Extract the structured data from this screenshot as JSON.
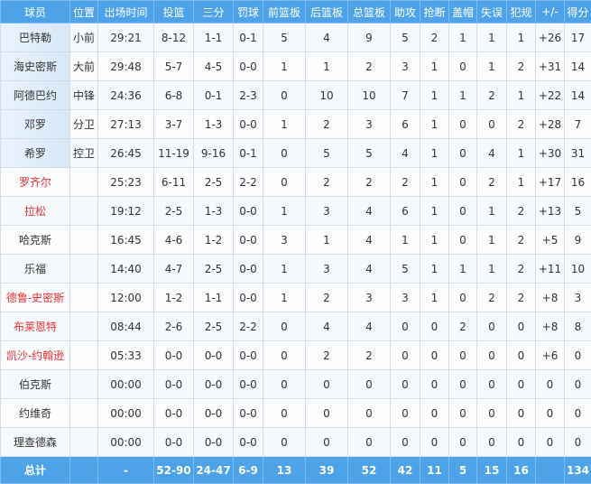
{
  "columns": [
    "球员",
    "位置",
    "出场时间",
    "投篮",
    "三分",
    "罚球",
    "前篮板",
    "后篮板",
    "总篮板",
    "助攻",
    "抢断",
    "盖帽",
    "失误",
    "犯规",
    "+/-",
    "得分"
  ],
  "players": [
    {
      "name": "巴特勒",
      "pos": "小前",
      "min": "29:21",
      "fg": "8-12",
      "tp": "1-1",
      "ft": "0-1",
      "oreb": "5",
      "dreb": "4",
      "reb": "9",
      "ast": "5",
      "stl": "2",
      "blk": "1",
      "tov": "1",
      "pf": "1",
      "pm": "+26",
      "pts": "17",
      "starter": true,
      "highlight": false
    },
    {
      "name": "海史密斯",
      "pos": "大前",
      "min": "29:48",
      "fg": "5-7",
      "tp": "4-5",
      "ft": "0-0",
      "oreb": "1",
      "dreb": "1",
      "reb": "2",
      "ast": "3",
      "stl": "1",
      "blk": "0",
      "tov": "1",
      "pf": "2",
      "pm": "+31",
      "pts": "14",
      "starter": true,
      "highlight": false
    },
    {
      "name": "阿德巴约",
      "pos": "中锋",
      "min": "24:36",
      "fg": "6-8",
      "tp": "0-1",
      "ft": "2-3",
      "oreb": "0",
      "dreb": "10",
      "reb": "10",
      "ast": "7",
      "stl": "1",
      "blk": "1",
      "tov": "2",
      "pf": "1",
      "pm": "+22",
      "pts": "14",
      "starter": true,
      "highlight": false
    },
    {
      "name": "邓罗",
      "pos": "分卫",
      "min": "27:13",
      "fg": "3-7",
      "tp": "1-3",
      "ft": "0-0",
      "oreb": "1",
      "dreb": "2",
      "reb": "3",
      "ast": "6",
      "stl": "1",
      "blk": "0",
      "tov": "0",
      "pf": "2",
      "pm": "+28",
      "pts": "7",
      "starter": true,
      "highlight": false
    },
    {
      "name": "希罗",
      "pos": "控卫",
      "min": "26:45",
      "fg": "11-19",
      "tp": "9-16",
      "ft": "0-1",
      "oreb": "0",
      "dreb": "5",
      "reb": "5",
      "ast": "4",
      "stl": "1",
      "blk": "0",
      "tov": "4",
      "pf": "1",
      "pm": "+30",
      "pts": "31",
      "starter": true,
      "highlight": false
    },
    {
      "name": "罗齐尔",
      "pos": "",
      "min": "25:23",
      "fg": "6-11",
      "tp": "2-5",
      "ft": "2-2",
      "oreb": "0",
      "dreb": "2",
      "reb": "2",
      "ast": "2",
      "stl": "1",
      "blk": "0",
      "tov": "2",
      "pf": "1",
      "pm": "+17",
      "pts": "16",
      "starter": false,
      "highlight": true
    },
    {
      "name": "拉松",
      "pos": "",
      "min": "19:12",
      "fg": "2-5",
      "tp": "1-3",
      "ft": "0-0",
      "oreb": "1",
      "dreb": "3",
      "reb": "4",
      "ast": "6",
      "stl": "1",
      "blk": "0",
      "tov": "1",
      "pf": "2",
      "pm": "+13",
      "pts": "5",
      "starter": false,
      "highlight": true
    },
    {
      "name": "哈克斯",
      "pos": "",
      "min": "16:45",
      "fg": "4-6",
      "tp": "1-2",
      "ft": "0-0",
      "oreb": "3",
      "dreb": "1",
      "reb": "4",
      "ast": "1",
      "stl": "1",
      "blk": "0",
      "tov": "1",
      "pf": "2",
      "pm": "+5",
      "pts": "9",
      "starter": false,
      "highlight": false
    },
    {
      "name": "乐福",
      "pos": "",
      "min": "14:40",
      "fg": "4-7",
      "tp": "2-5",
      "ft": "0-0",
      "oreb": "1",
      "dreb": "3",
      "reb": "4",
      "ast": "5",
      "stl": "1",
      "blk": "1",
      "tov": "1",
      "pf": "2",
      "pm": "+11",
      "pts": "10",
      "starter": false,
      "highlight": false
    },
    {
      "name": "德鲁-史密斯",
      "pos": "",
      "min": "12:00",
      "fg": "1-2",
      "tp": "1-1",
      "ft": "0-0",
      "oreb": "1",
      "dreb": "2",
      "reb": "3",
      "ast": "3",
      "stl": "1",
      "blk": "0",
      "tov": "2",
      "pf": "2",
      "pm": "+8",
      "pts": "3",
      "starter": false,
      "highlight": true
    },
    {
      "name": "布莱恩特",
      "pos": "",
      "min": "08:44",
      "fg": "2-6",
      "tp": "2-5",
      "ft": "2-2",
      "oreb": "0",
      "dreb": "4",
      "reb": "4",
      "ast": "0",
      "stl": "0",
      "blk": "2",
      "tov": "0",
      "pf": "0",
      "pm": "+8",
      "pts": "8",
      "starter": false,
      "highlight": true
    },
    {
      "name": "凯沙-约翰逊",
      "pos": "",
      "min": "05:33",
      "fg": "0-0",
      "tp": "0-0",
      "ft": "0-0",
      "oreb": "0",
      "dreb": "2",
      "reb": "2",
      "ast": "0",
      "stl": "0",
      "blk": "0",
      "tov": "0",
      "pf": "0",
      "pm": "+6",
      "pts": "0",
      "starter": false,
      "highlight": true
    },
    {
      "name": "伯克斯",
      "pos": "",
      "min": "00:00",
      "fg": "0-0",
      "tp": "0-0",
      "ft": "0-0",
      "oreb": "0",
      "dreb": "0",
      "reb": "0",
      "ast": "0",
      "stl": "0",
      "blk": "0",
      "tov": "0",
      "pf": "0",
      "pm": "0",
      "pts": "0",
      "starter": false,
      "highlight": false
    },
    {
      "name": "约维奇",
      "pos": "",
      "min": "00:00",
      "fg": "0-0",
      "tp": "0-0",
      "ft": "0-0",
      "oreb": "0",
      "dreb": "0",
      "reb": "0",
      "ast": "0",
      "stl": "0",
      "blk": "0",
      "tov": "0",
      "pf": "0",
      "pm": "0",
      "pts": "0",
      "starter": false,
      "highlight": false
    },
    {
      "name": "理查德森",
      "pos": "",
      "min": "00:00",
      "fg": "0-0",
      "tp": "0-0",
      "ft": "0-0",
      "oreb": "0",
      "dreb": "0",
      "reb": "0",
      "ast": "0",
      "stl": "0",
      "blk": "0",
      "tov": "0",
      "pf": "0",
      "pm": "0",
      "pts": "0",
      "starter": false,
      "highlight": false
    }
  ],
  "totals": {
    "name": "总计",
    "pos": "",
    "min": "-",
    "fg": "52-90",
    "tp": "24-47",
    "ft": "6-9",
    "oreb": "13",
    "dreb": "39",
    "reb": "52",
    "ast": "42",
    "stl": "11",
    "blk": "5",
    "tov": "15",
    "pf": "16",
    "pm": "",
    "pts": "134"
  },
  "colors": {
    "header": "#4ea2e8",
    "highlight_name": "#e8302f"
  }
}
